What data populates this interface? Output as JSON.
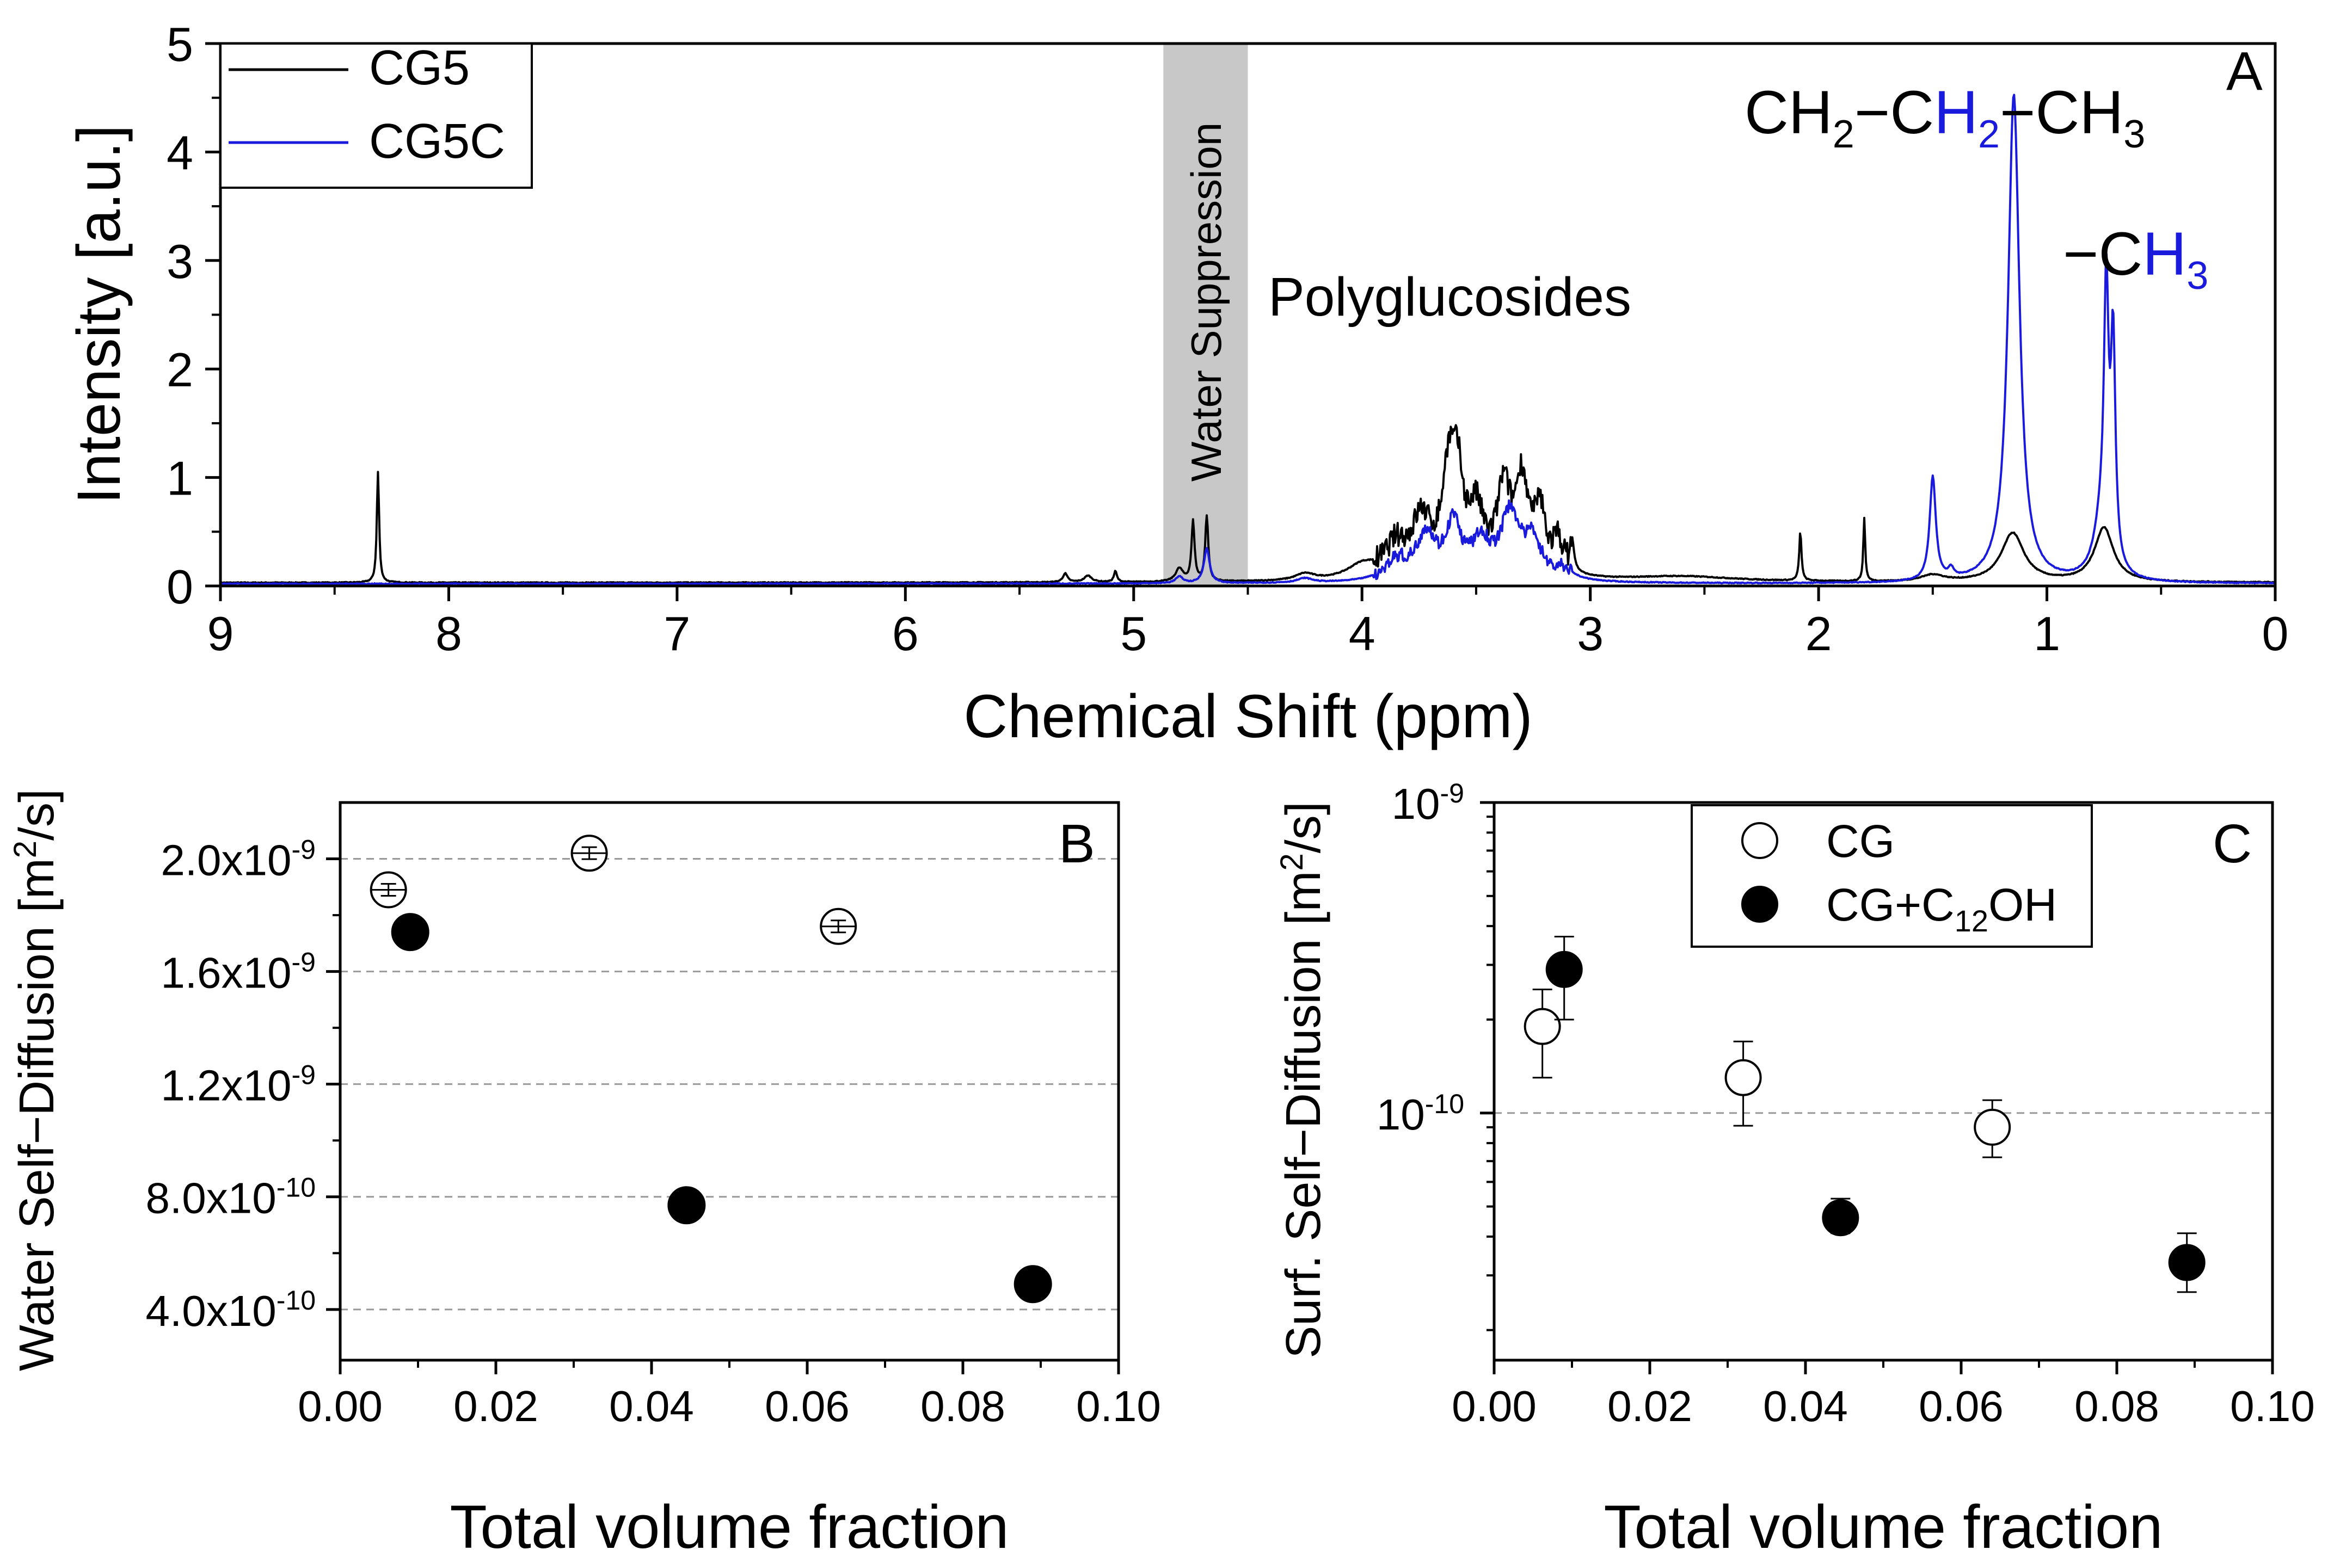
{
  "chart_data": [
    {
      "panel": "A",
      "type": "line",
      "panel_label": "A",
      "xlabel": "Chemical Shift (ppm)",
      "ylabel": "Intensity [a.u.]",
      "xlim": [
        9,
        0
      ],
      "ylim": [
        0,
        5
      ],
      "xticks": [
        "9",
        "8",
        "7",
        "6",
        "5",
        "4",
        "3",
        "2",
        "1",
        "0"
      ],
      "yticks": [
        "0",
        "1",
        "2",
        "3",
        "4",
        "5"
      ],
      "legend": {
        "position": "top-left",
        "entries": [
          "CG5",
          "CG5C"
        ]
      },
      "shaded_region": {
        "x": [
          4.87,
          4.5
        ],
        "label": "Water Suppression"
      },
      "annotations": {
        "polyglucosides": "Polyglucosides",
        "ch2_a": "CH",
        "ch2_a_sub": "2",
        "ch2_dash1": "−C",
        "ch2_h": "H",
        "ch2_h_sub": "2",
        "ch2_dash2": "−CH",
        "ch2_b_sub": "3",
        "ch3_prefix": "−C",
        "ch3_h": "H",
        "ch3_sub": "3"
      },
      "series": [
        {
          "name": "CG5",
          "color": "#000000",
          "baseline": 0.03,
          "peaks": [
            [
              8.31,
              1.02,
              0.006
            ],
            [
              5.3,
              0.08,
              0.012
            ],
            [
              5.2,
              0.06,
              0.02
            ],
            [
              5.08,
              0.1,
              0.008
            ],
            [
              4.8,
              0.12,
              0.02
            ],
            [
              4.74,
              0.55,
              0.008
            ],
            [
              4.68,
              0.6,
              0.008
            ],
            [
              4.25,
              0.06,
              0.05
            ],
            [
              4.0,
              0.12,
              0.08
            ],
            [
              3.85,
              0.28,
              0.06
            ],
            [
              3.74,
              0.5,
              0.05
            ],
            [
              3.62,
              0.9,
              0.035
            ],
            [
              3.58,
              0.7,
              0.03
            ],
            [
              3.5,
              0.55,
              0.04
            ],
            [
              3.38,
              0.75,
              0.035
            ],
            [
              3.3,
              0.85,
              0.035
            ],
            [
              3.22,
              0.55,
              0.03
            ],
            [
              3.14,
              0.3,
              0.03
            ],
            [
              3.08,
              0.28,
              0.01
            ],
            [
              2.6,
              0.05,
              0.3
            ],
            [
              2.08,
              0.45,
              0.006
            ],
            [
              1.8,
              0.58,
              0.005
            ],
            [
              1.5,
              0.06,
              0.06
            ],
            [
              1.15,
              0.45,
              0.06
            ],
            [
              0.75,
              0.5,
              0.05
            ]
          ]
        },
        {
          "name": "CG5C",
          "color": "#1a1add",
          "baseline": 0.02,
          "peaks": [
            [
              4.8,
              0.06,
              0.02
            ],
            [
              4.68,
              0.32,
              0.015
            ],
            [
              4.25,
              0.04,
              0.04
            ],
            [
              3.85,
              0.18,
              0.06
            ],
            [
              3.72,
              0.42,
              0.05
            ],
            [
              3.6,
              0.5,
              0.04
            ],
            [
              3.48,
              0.32,
              0.05
            ],
            [
              3.35,
              0.62,
              0.05
            ],
            [
              3.25,
              0.35,
              0.04
            ],
            [
              3.12,
              0.1,
              0.05
            ],
            [
              1.5,
              0.96,
              0.016
            ],
            [
              1.42,
              0.08,
              0.015
            ],
            [
              1.145,
              4.5,
              0.03
            ],
            [
              0.74,
              2.35,
              0.012
            ],
            [
              0.71,
              2.0,
              0.012
            ],
            [
              0.76,
              0.5,
              0.04
            ]
          ]
        }
      ]
    },
    {
      "panel": "B",
      "type": "scatter",
      "panel_label": "B",
      "xlabel": "Total volume fraction",
      "ylabel_main": "Water Self−Diffusion [m",
      "ylabel_sup": "2",
      "ylabel_end": "/s]",
      "xlim": [
        0,
        0.1
      ],
      "ylim": [
        2.2e-10,
        2.2e-09
      ],
      "xticks": [
        "0.00",
        "0.02",
        "0.04",
        "0.06",
        "0.08",
        "0.10"
      ],
      "yticks": [
        {
          "value": 4e-10,
          "mant": "4.0x10",
          "exp": "-10"
        },
        {
          "value": 8e-10,
          "mant": "8.0x10",
          "exp": "-10"
        },
        {
          "value": 1.2e-09,
          "mant": "1.2x10",
          "exp": "-9"
        },
        {
          "value": 1.6e-09,
          "mant": "1.6x10",
          "exp": "-9"
        },
        {
          "value": 2e-09,
          "mant": "2.0x10",
          "exp": "-9"
        }
      ],
      "grid": "horizontal dashed",
      "series": [
        {
          "name": "CG",
          "marker": "open circle",
          "x": [
            0.0062,
            0.032,
            0.064
          ],
          "y": [
            1.89e-09,
            2.02e-09,
            1.76e-09
          ]
        },
        {
          "name": "CG+C12OH",
          "marker": "filled circle",
          "x": [
            0.009,
            0.0445,
            0.089
          ],
          "y": [
            1.74e-09,
            7.7e-10,
            4.9e-10
          ]
        }
      ]
    },
    {
      "panel": "C",
      "type": "scatter",
      "panel_label": "C",
      "xlabel": "Total volume fraction",
      "ylabel_main": "Surf. Self−Diffusion [m",
      "ylabel_sup": "2",
      "ylabel_end": "/s]",
      "yscale": "log",
      "xlim": [
        0,
        0.1
      ],
      "ylim": [
        1.6e-11,
        1e-09
      ],
      "xticks": [
        "0.00",
        "0.02",
        "0.04",
        "0.06",
        "0.08",
        "0.10"
      ],
      "yticks": [
        {
          "value": 1e-10,
          "mant": "10",
          "exp": "-10"
        },
        {
          "value": 1e-09,
          "mant": "10",
          "exp": "-9"
        }
      ],
      "legend": {
        "position": "top-right",
        "entries": [
          "CG",
          "CG+C12OH"
        ]
      },
      "legend_cg": "CG",
      "legend_cgc_main": "CG+C",
      "legend_cgc_sub": "12",
      "legend_cgc_end": "OH",
      "series": [
        {
          "name": "CG",
          "marker": "open circle",
          "x": [
            0.0062,
            0.032,
            0.064
          ],
          "y": [
            1.9e-10,
            1.3e-10,
            9e-11
          ],
          "err_low": [
            1.3e-10,
            9.1e-11,
            7.2e-11
          ],
          "err_high": [
            2.5e-10,
            1.7e-10,
            1.1e-10
          ]
        },
        {
          "name": "CG+C12OH",
          "marker": "filled circle",
          "x": [
            0.009,
            0.0445,
            0.089
          ],
          "y": [
            2.9e-10,
            4.6e-11,
            3.3e-11
          ],
          "err_low": [
            2e-10,
            4.1e-11,
            2.65e-11
          ],
          "err_high": [
            3.7e-10,
            5.3e-11,
            4.1e-11
          ]
        }
      ]
    }
  ]
}
